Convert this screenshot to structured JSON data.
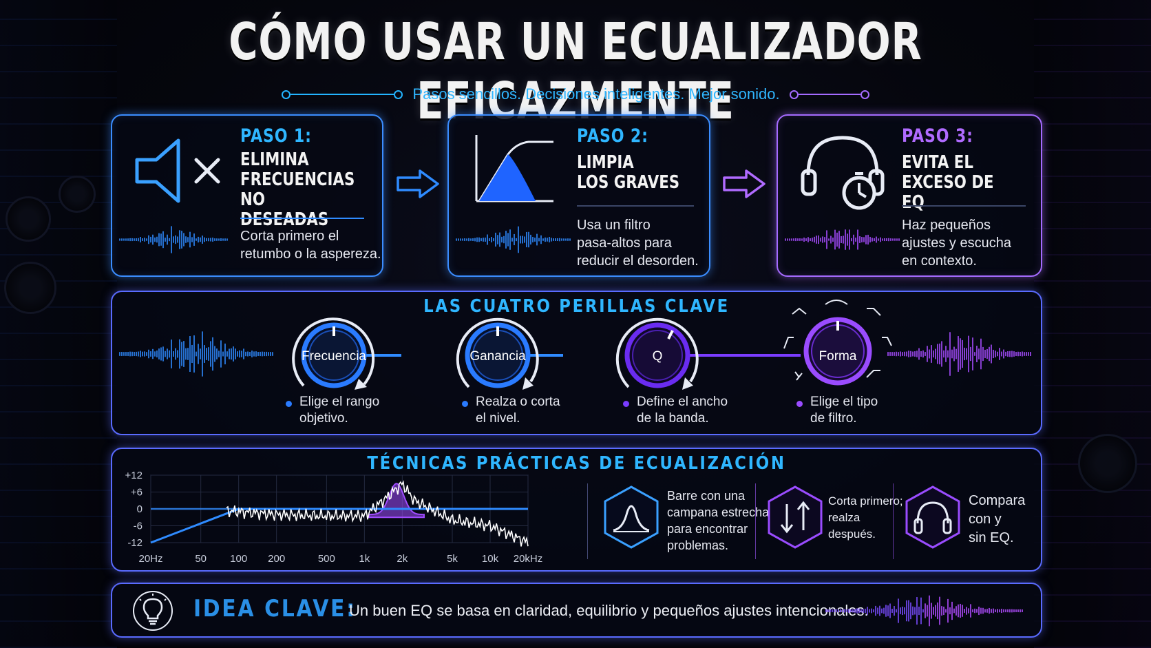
{
  "header": {
    "title": "CÓMO USAR UN ECUALIZADOR EFICAZMENTE",
    "subtitle": "Pasos sencillos. Decisiones inteligentes. Mejor sonido."
  },
  "steps": [
    {
      "label": "PASO 1:",
      "heading": "ELIMINA\nFRECUENCIAS\nNO DESEADAS",
      "description": "Corta primero el\nretumbo o la aspereza.",
      "icon": "speaker-mute-icon",
      "color": "#2fb6ff"
    },
    {
      "label": "PASO 2:",
      "heading": "LIMPIA\nLOS GRAVES",
      "description": "Usa un filtro\npasa-altos para\nreducir el desorden.",
      "icon": "high-pass-filter-icon",
      "color": "#2fb6ff"
    },
    {
      "label": "PASO 3:",
      "heading": "EVITA EL\nEXCESO DE EQ",
      "description": "Haz pequeños\najustes y escucha\nen contexto.",
      "icon": "headphones-timer-icon",
      "color": "#b06bff"
    }
  ],
  "knobs_section": {
    "title": "LAS CUATRO PERILLAS CLAVE",
    "knobs": [
      {
        "label": "Frecuencia",
        "description": "Elige el rango\nobjetivo.",
        "color": "#2a7bff"
      },
      {
        "label": "Ganancia",
        "description": "Realza o corta\nel nivel.",
        "color": "#2a7bff"
      },
      {
        "label": "Q",
        "description": "Define el ancho\nde la banda.",
        "color": "#7a3cff"
      },
      {
        "label": "Forma",
        "description": "Elige el tipo\nde filtro.",
        "color": "#9a4cff"
      }
    ]
  },
  "techniques_section": {
    "title": "TÉCNICAS PRÁCTICAS DE ECUALIZACIÓN",
    "tips": [
      {
        "text": "Barre con una\ncampana estrecha\npara encontrar\nproblemas.",
        "icon": "bell-curve-icon"
      },
      {
        "text": "Corta primero;\nrealza\ndespués.",
        "icon": "arrows-up-down-icon"
      },
      {
        "text": "Compara\ncon y\nsin EQ.",
        "icon": "headphones-icon"
      }
    ]
  },
  "chart_data": {
    "type": "line",
    "y_ticks": [
      "+12",
      "+6",
      "0",
      "-6",
      "-12"
    ],
    "x_ticks": [
      "20Hz",
      "50",
      "100",
      "200",
      "500",
      "1k",
      "2k",
      "5k",
      "10k",
      "20kHz"
    ],
    "ylim": [
      -12,
      12
    ],
    "series": [
      {
        "x": [
          20,
          50,
          100,
          200,
          500,
          1000,
          2000,
          5000,
          10000,
          20000
        ],
        "values": [
          -12,
          -6,
          0,
          0,
          0,
          0,
          0,
          0,
          0,
          0
        ],
        "color": "#2f8bff"
      },
      {
        "x": [
          20,
          50,
          100,
          200,
          500,
          1000,
          1500,
          2000,
          2500,
          5000,
          10000,
          20000
        ],
        "values": [
          0,
          0,
          -1,
          -2,
          -2.5,
          -2.5,
          4,
          9,
          3,
          -4,
          -6,
          -12
        ],
        "color": "#ffffff"
      }
    ],
    "highlight_band": {
      "center_hz": 1800,
      "peak_db": 9,
      "color": "#a04cff"
    }
  },
  "key_idea": {
    "title": "IDEA CLAVE:",
    "text": "Un buen EQ se basa en claridad, equilibrio y pequeños ajustes intencionales.",
    "icon": "lightbulb-icon"
  }
}
